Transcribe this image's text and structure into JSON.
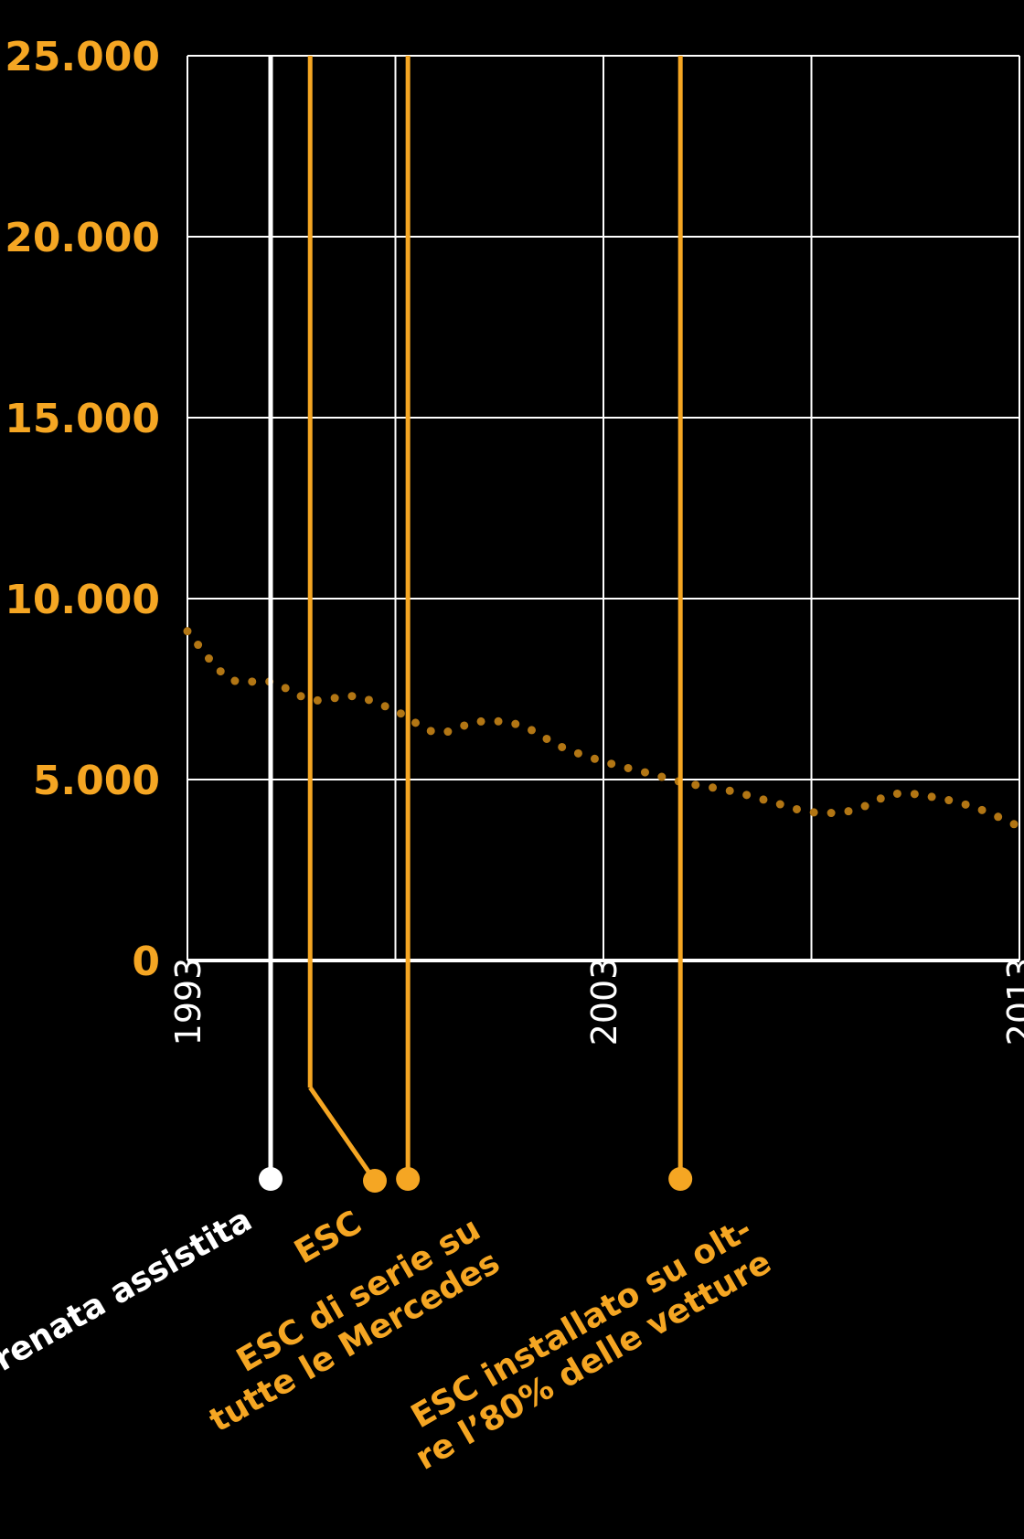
{
  "colors": {
    "background": "#000000",
    "grid": "#ffffff",
    "accent": "#f5a623",
    "series": "#b27614",
    "brake_line": "#ffffff"
  },
  "chart_data": {
    "type": "line",
    "title": "",
    "xlabel": "",
    "ylabel": "",
    "xlim": [
      1993,
      2013
    ],
    "ylim": [
      0,
      25000
    ],
    "grid": true,
    "line_style": "dotted",
    "yticks": [
      {
        "value": 0,
        "label": "0"
      },
      {
        "value": 5000,
        "label": "5.000"
      },
      {
        "value": 10000,
        "label": "10.000"
      },
      {
        "value": 15000,
        "label": "15.000"
      },
      {
        "value": 20000,
        "label": "20.000"
      },
      {
        "value": 25000,
        "label": "25.000"
      }
    ],
    "xticks": [
      {
        "value": 1993,
        "label": "1993"
      },
      {
        "value": 2003,
        "label": "2003"
      },
      {
        "value": 2013,
        "label": "2013"
      }
    ],
    "series": [
      {
        "name": "",
        "x": [
          1993,
          1994,
          1995,
          1996,
          1997,
          1998,
          1999,
          2000,
          2001,
          2002,
          2003,
          2004,
          2005,
          2006,
          2007,
          2008,
          2009,
          2010,
          2011,
          2012,
          2013
        ],
        "y": [
          9100,
          7800,
          7700,
          7200,
          7300,
          6900,
          6300,
          6600,
          6500,
          5900,
          5500,
          5200,
          4900,
          4700,
          4400,
          4100,
          4150,
          4600,
          4500,
          4200,
          3700
        ]
      }
    ],
    "annotations": [
      {
        "x": 1995,
        "label": "Frenata assistita",
        "color": "#ffffff"
      },
      {
        "x": 1995.95,
        "label": "ESC",
        "color": "#f5a623"
      },
      {
        "x": 1998.3,
        "label_lines": [
          "ESC di serie su",
          "tutte le Mercedes"
        ],
        "color": "#f5a623"
      },
      {
        "x": 2004.85,
        "label_lines": [
          "ESC installato su olt-",
          "re l’80% delle vetture"
        ],
        "color": "#f5a623"
      }
    ]
  }
}
